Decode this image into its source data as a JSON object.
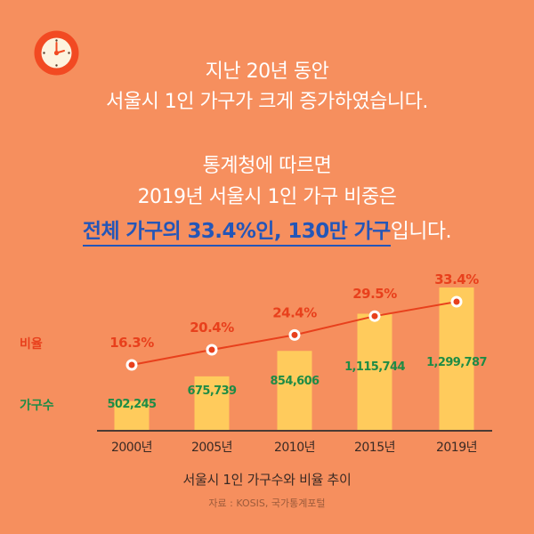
{
  "header": {
    "line1": "지난 20년 동안",
    "line2": "서울시 1인 가구가 크게 증가하였습니다.",
    "line3": "통계청에 따르면",
    "line4": "2019년 서울시 1인 가구 비중은",
    "line5_highlight": "전체 가구의 33.4%인, 130만 가구",
    "line5_tail": "입니다."
  },
  "icons": {
    "clock": "clock-icon"
  },
  "colors": {
    "background": "#F68F5E",
    "bar": "#FFCB5C",
    "line": "#E8401C",
    "ratio_label": "#E8401C",
    "count_label": "#1E8C45",
    "highlight": "#2456B8",
    "axis": "#4a3a33"
  },
  "chart_data": {
    "type": "bar+line",
    "title": "서울시 1인 가구수와 비율 추이",
    "source": "자료 : KOSIS, 국가통계포털",
    "categories": [
      "2000년",
      "2005년",
      "2010년",
      "2015년",
      "2019년"
    ],
    "row_labels": {
      "ratio": "비율",
      "count": "가구수"
    },
    "series": [
      {
        "name": "가구수",
        "type": "bar",
        "values": [
          502245,
          675739,
          854606,
          1115744,
          1299787
        ],
        "labels": [
          "502,245",
          "675,739",
          "854,606",
          "1,115,744",
          "1,299,787"
        ]
      },
      {
        "name": "비율",
        "type": "line",
        "values": [
          16.3,
          20.4,
          24.4,
          29.5,
          33.4
        ],
        "labels": [
          "16.3%",
          "20.4%",
          "24.4%",
          "29.5%",
          "33.4%"
        ]
      }
    ],
    "grid": false
  }
}
